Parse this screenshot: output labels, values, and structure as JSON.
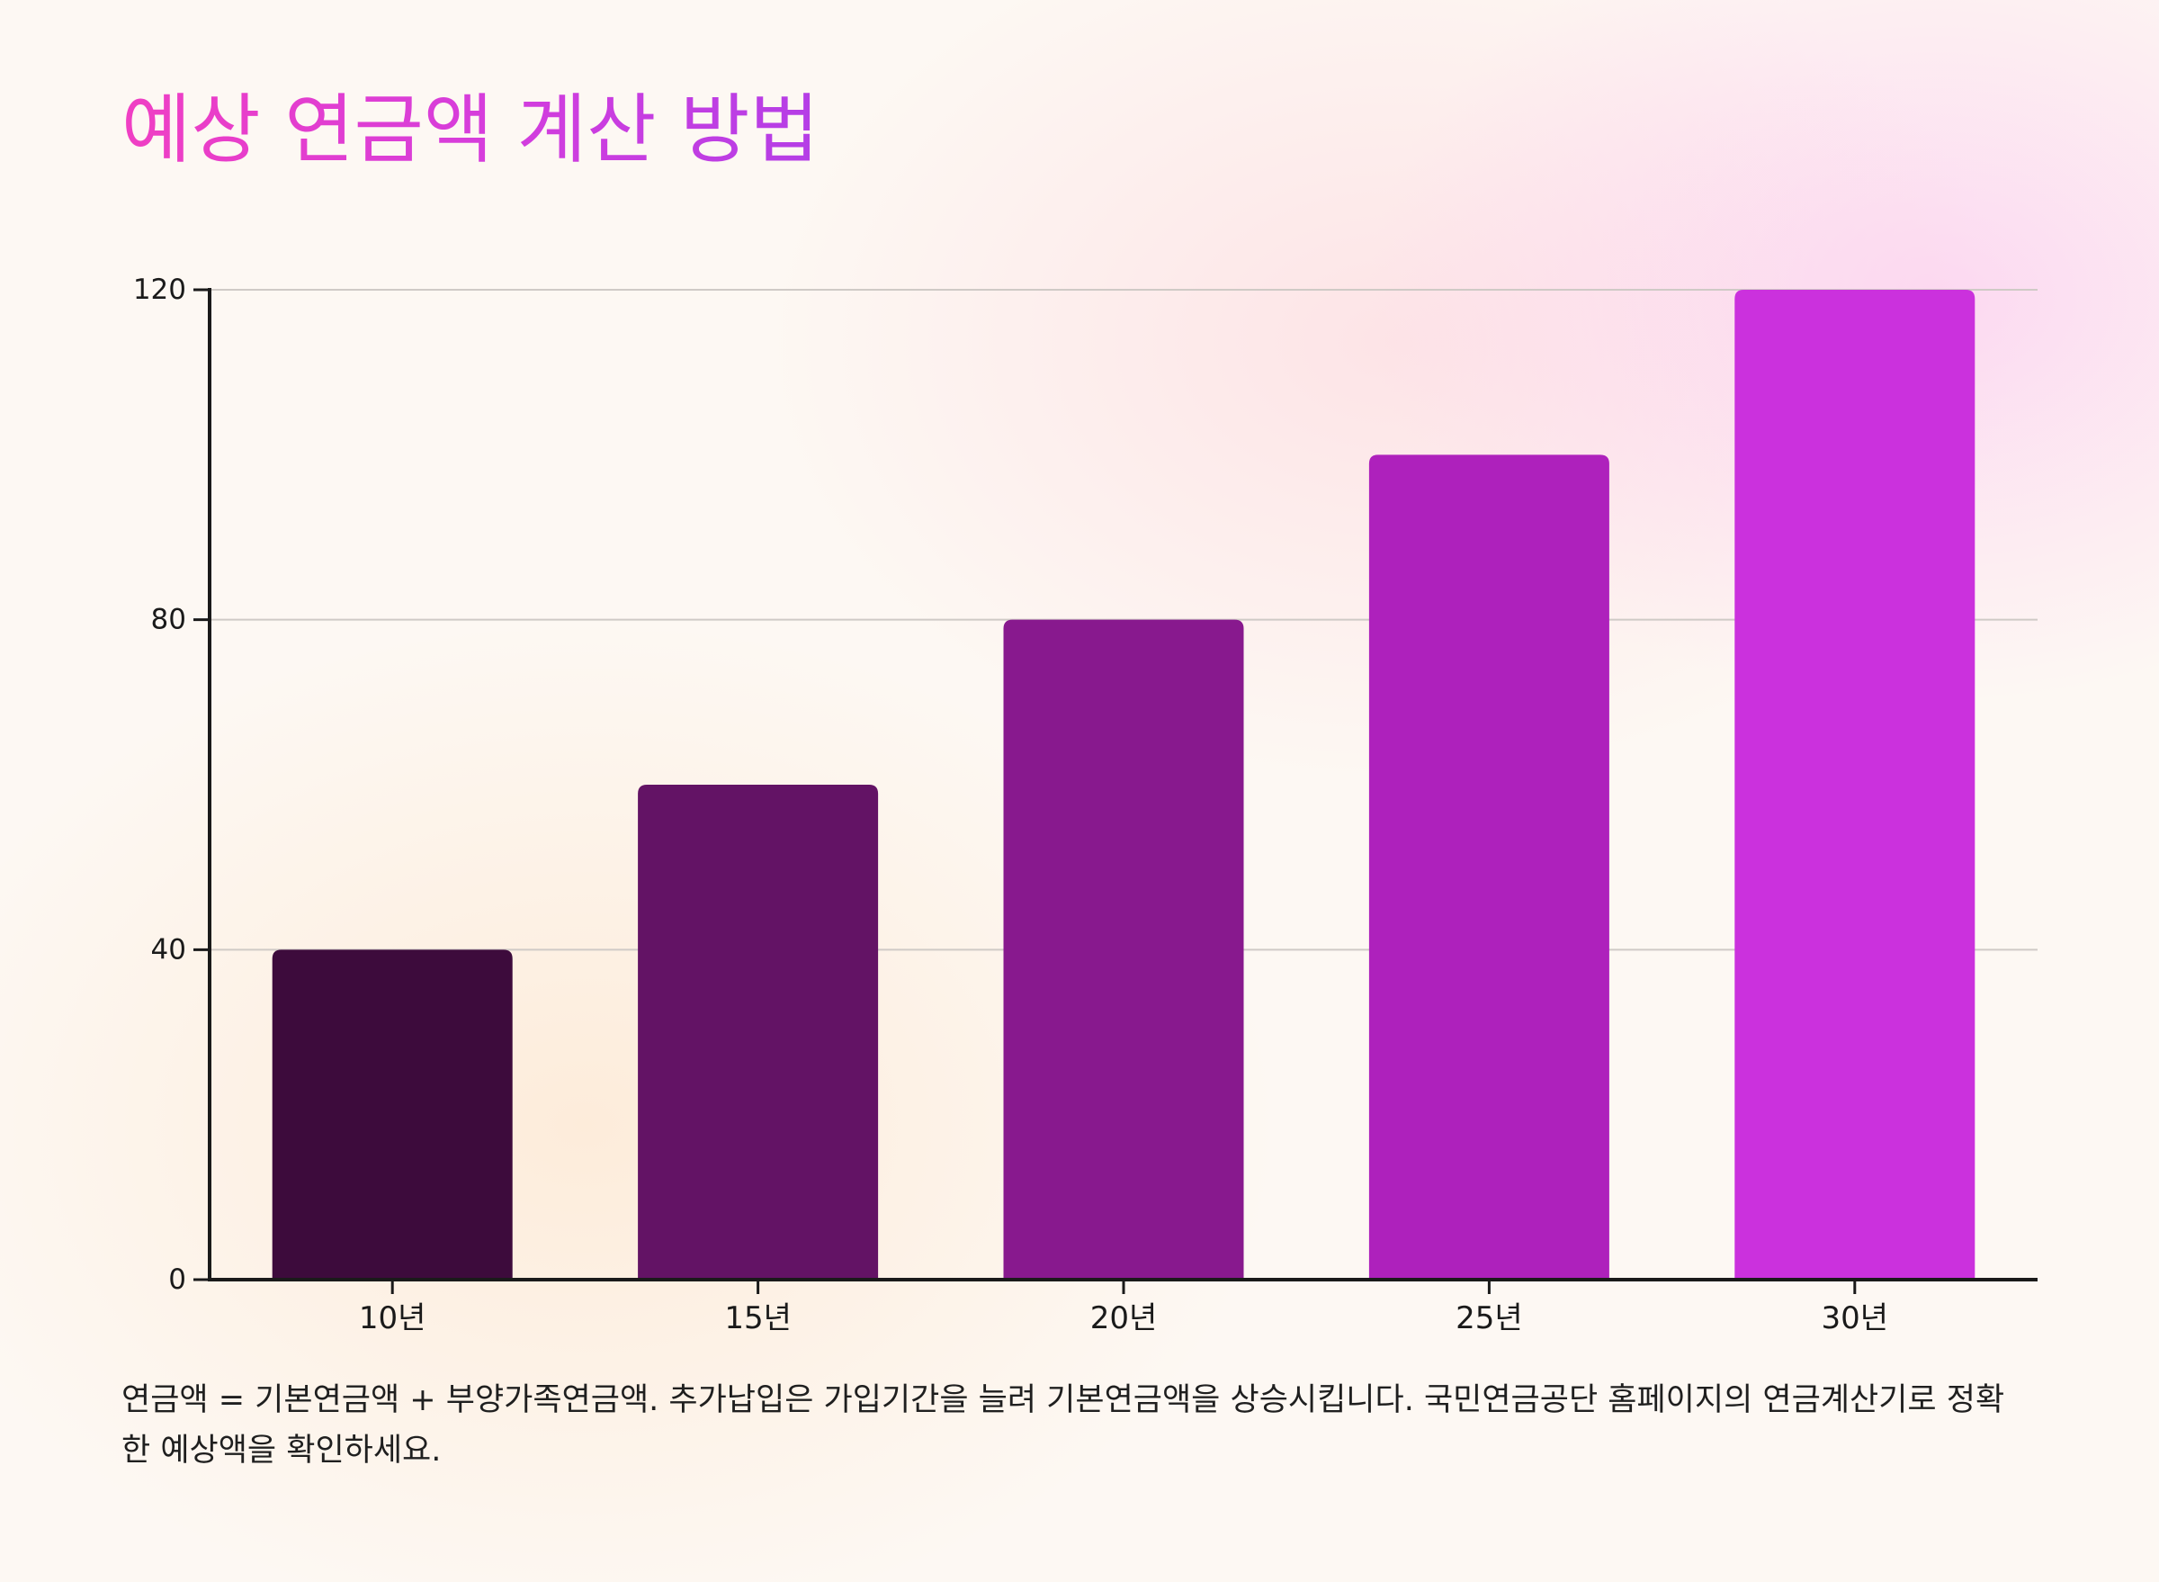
{
  "title": "예상 연금액 계산 방법",
  "caption": "연금액 = 기본연금액 + 부양가족연금액. 추가납입은 가입기간을 늘려 기본연금액을 상승시킵니다. 국민연금공단 홈페이지의 연금계산기로 정확한 예상액을 확인하세요.",
  "chart_data": {
    "type": "bar",
    "title": "예상 연금액 계산 방법",
    "xlabel": "",
    "ylabel": "",
    "categories": [
      "10년",
      "15년",
      "20년",
      "25년",
      "30년"
    ],
    "values": [
      40,
      60,
      80,
      100,
      120
    ],
    "ylim": [
      0,
      120
    ],
    "yticks": [
      0,
      40,
      80,
      120
    ],
    "grid": true,
    "legend": "none",
    "colors": [
      "#3d0b3c",
      "#631365",
      "#88198e",
      "#ae21bc",
      "#cb31dd"
    ],
    "gridline_color": "#cfcac6",
    "axis_color": "#1a1a1a"
  }
}
